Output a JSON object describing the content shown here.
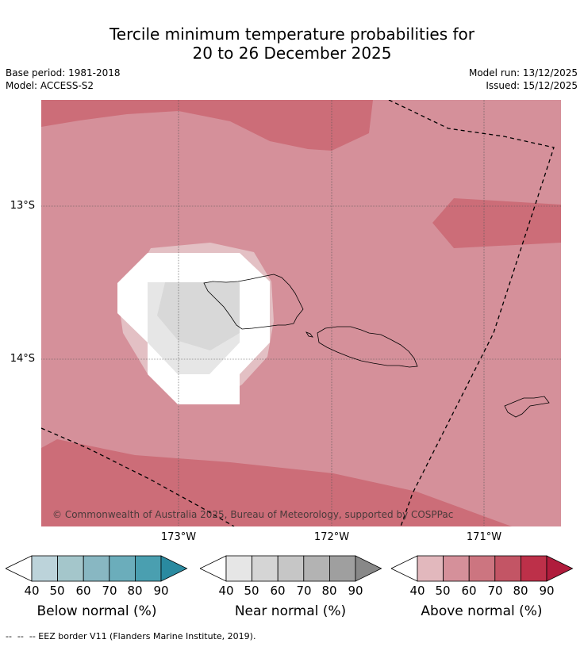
{
  "title_line1": "Tercile minimum temperature probabilities for",
  "title_line2": "20 to 26 December 2025",
  "meta": {
    "base_period": "Base period: 1981-2018",
    "model": "Model: ACCESS-S2",
    "model_run": "Model run: 13/12/2025",
    "issued": "Issued: 15/12/2025"
  },
  "map": {
    "lat_labels": [
      "13°S",
      "14°S"
    ],
    "lon_labels": [
      "173°W",
      "172°W",
      "171°W"
    ],
    "copyright": "© Commonwealth of Australia 2025, Bureau of Meteorology, supported by COSPPac"
  },
  "legend": {
    "ticks": [
      "40",
      "50",
      "60",
      "70",
      "80",
      "90"
    ],
    "below": {
      "title": "Below normal (%)",
      "colors": [
        "#bcd3da",
        "#a4c6cb",
        "#88b7c2",
        "#6badbb",
        "#4a9fb0",
        "#2a8aa0"
      ]
    },
    "near": {
      "title": "Near normal (%)",
      "colors": [
        "#e6e6e6",
        "#d5d5d5",
        "#c6c6c6",
        "#b3b3b3",
        "#9f9f9f",
        "#888888"
      ]
    },
    "above": {
      "title": "Above normal (%)",
      "colors": [
        "#e2b8bd",
        "#d5909a",
        "#cc7580",
        "#c35565",
        "#bd3049",
        "#b01c3c"
      ]
    }
  },
  "footnote": "--  --  -- EEZ border V11 (Flanders Marine Institute, 2019)."
}
